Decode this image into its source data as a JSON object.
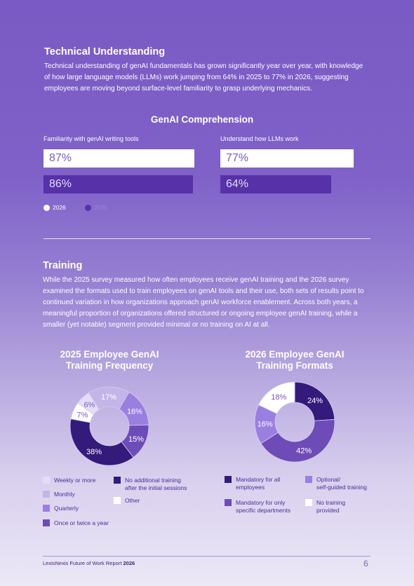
{
  "technical": {
    "heading": "Technical Understanding",
    "body": "Technical understanding of genAI fundamentals has grown significantly year over year, with knowledge of how large language models (LLMs) work jumping from 64% in 2025 to 77% in 2026, suggesting employees are moving beyond surface-level familiarity to grasp underlying mechanics."
  },
  "comprehension": {
    "title": "GenAI Comprehension",
    "legend_2026": "2026",
    "legend_2025": "2025"
  },
  "chart_data": [
    {
      "type": "bar",
      "title": "GenAI Comprehension",
      "categories": [
        "Familiarity with genAI writing tools",
        "Understand how LLMs work"
      ],
      "series": [
        {
          "name": "2026",
          "values": [
            87,
            77
          ],
          "labels": [
            "87%",
            "77%"
          ],
          "color": "#ffffff"
        },
        {
          "name": "2025",
          "values": [
            86,
            64
          ],
          "labels": [
            "86%",
            "64%"
          ],
          "color": "#5631a8"
        }
      ]
    },
    {
      "type": "pie",
      "title": "2025 Employee GenAI Training Frequency",
      "slices": [
        {
          "label": "Monthly",
          "value": 17,
          "text": "17%",
          "color": "#c3b5e8",
          "text_color": "#ffffff"
        },
        {
          "label": "Quarterly",
          "value": 16,
          "text": "16%",
          "color": "#9a7ee0",
          "text_color": "#ffffff"
        },
        {
          "label": "Once or twice a year",
          "value": 15,
          "text": "15%",
          "color": "#6e4cb8",
          "text_color": "#ffffff"
        },
        {
          "label": "No additional training after the initial sessions",
          "value": 38,
          "text": "38%",
          "color": "#341a7a",
          "text_color": "#ffffff"
        },
        {
          "label": "Other",
          "value": 7,
          "text": "7%",
          "color": "#ffffff",
          "text_color": "#7a5ac4"
        },
        {
          "label": "Weekly or more",
          "value": 6,
          "text": "6%",
          "color": "#e4ddf5",
          "text_color": "#7a5ac4"
        }
      ]
    },
    {
      "type": "pie",
      "title": "2026 Employee GenAI Training Formats",
      "slices": [
        {
          "label": "Mandatory for all employees",
          "value": 24,
          "text": "24%",
          "color": "#341a7a",
          "text_color": "#ffffff"
        },
        {
          "label": "Mandatory for only specific departments",
          "value": 42,
          "text": "42%",
          "color": "#6e4cb8",
          "text_color": "#ffffff"
        },
        {
          "label": "Optional/ self-guided training",
          "value": 16,
          "text": "16%",
          "color": "#9a7ee0",
          "text_color": "#ffffff"
        },
        {
          "label": "No training provided",
          "value": 18,
          "text": "18%",
          "color": "#ffffff",
          "text_color": "#7a5ac4"
        }
      ]
    }
  ],
  "training": {
    "heading": "Training",
    "body": "While the 2025 survey measured how often employees receive genAI training and the 2026 survey examined the formats used to train employees on genAI tools and their use, both sets of results point to continued variation in how organizations approach genAI workforce enablement. Across both years, a meaningful proportion of organizations offered structured or ongoing employee genAI training, while a smaller (yet notable) segment provided minimal or no training on AI at all."
  },
  "freq_chart": {
    "title_line1": "2025 Employee GenAI",
    "title_line2": "Training Frequency",
    "legend": {
      "weekly": "Weekly or more",
      "monthly": "Monthly",
      "quarterly": "Quarterly",
      "once_twice": "Once or twice a year",
      "no_additional_1": "No additional training",
      "no_additional_2": "after the initial sessions",
      "other": "Other"
    }
  },
  "format_chart": {
    "title_line1": "2026 Employee GenAI",
    "title_line2": "Training Formats",
    "legend": {
      "mand_all_1": "Mandatory for all",
      "mand_all_2": "employees",
      "mand_dept_1": "Mandatory for only",
      "mand_dept_2": "specific departments",
      "optional_1": "Optional/",
      "optional_2": "self-guided training",
      "none_1": "No training",
      "none_2": "provided"
    }
  },
  "footer": {
    "report": "LexisNexis Future of Work Report",
    "year": "2026",
    "page": "6"
  },
  "colors": {
    "dark": "#341a7a",
    "mid": "#6e4cb8",
    "light": "#9a7ee0",
    "pale": "#c3b5e8",
    "palest": "#e4ddf5",
    "bar2025": "#5631a8"
  }
}
